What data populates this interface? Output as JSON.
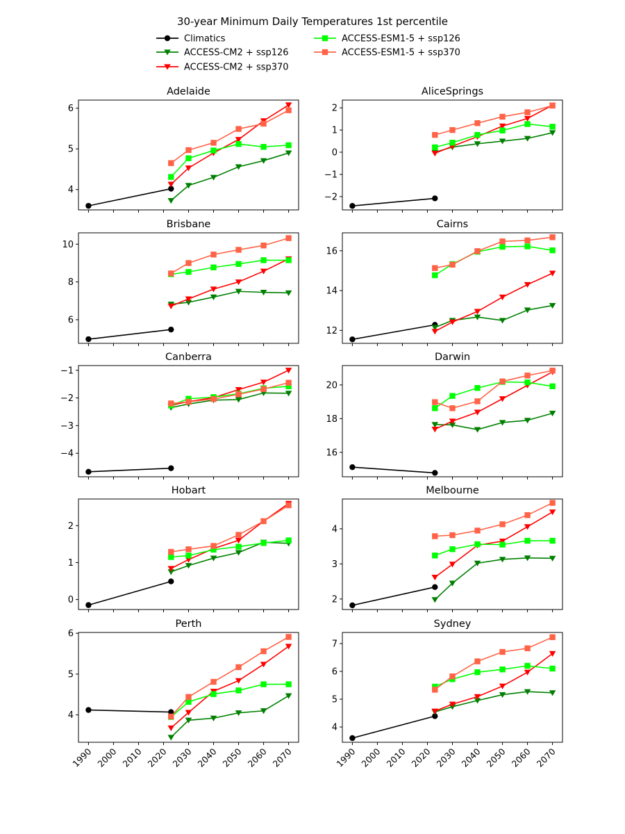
{
  "chart_data": {
    "type": "line",
    "title": "30-year Minimum Daily Temperatures 1st percentile",
    "legend_placement": "top-center",
    "xlabel": "",
    "ylabel": "",
    "grid": false,
    "x_ticks": [
      1990,
      2000,
      2010,
      2020,
      2030,
      2040,
      2050,
      2060,
      2070
    ],
    "xlim": [
      1986,
      2074
    ],
    "series_styles": [
      {
        "key": "climatics",
        "name": "Climatics",
        "color": "#000000",
        "marker": "circle"
      },
      {
        "key": "cm2_126",
        "name": "ACCESS-CM2 + ssp126",
        "color": "#008000",
        "marker": "triangle-down"
      },
      {
        "key": "cm2_370",
        "name": "ACCESS-CM2 + ssp370",
        "color": "#ff0000",
        "marker": "triangle-down"
      },
      {
        "key": "esm_126",
        "name": "ACCESS-ESM1-5 + ssp126",
        "color": "#00ff00",
        "marker": "square"
      },
      {
        "key": "esm_370",
        "name": "ACCESS-ESM1-5 + ssp370",
        "color": "#ff6347",
        "marker": "square"
      }
    ],
    "climatics_x": [
      1990,
      2023
    ],
    "projection_x": [
      2023,
      2030,
      2040,
      2050,
      2060,
      2070
    ],
    "panels": [
      {
        "title": "Adelaide",
        "ylim": [
          3.5,
          6.2
        ],
        "yticks": [
          4,
          5,
          6
        ],
        "series": {
          "climatics": [
            3.6,
            4.02
          ],
          "cm2_126": [
            3.73,
            4.1,
            4.3,
            4.56,
            4.71,
            4.9
          ],
          "cm2_370": [
            4.13,
            4.53,
            4.9,
            5.23,
            5.69,
            6.08
          ],
          "esm_126": [
            4.31,
            4.77,
            4.96,
            5.12,
            5.05,
            5.09
          ],
          "esm_370": [
            4.65,
            4.97,
            5.15,
            5.49,
            5.62,
            5.95
          ]
        }
      },
      {
        "title": "AliceSprings",
        "ylim": [
          -2.6,
          2.35
        ],
        "yticks": [
          -2,
          -1,
          0,
          1,
          2
        ],
        "series": {
          "climatics": [
            -2.42,
            -2.08
          ],
          "cm2_126": [
            0.0,
            0.23,
            0.38,
            0.5,
            0.62,
            0.88
          ],
          "cm2_370": [
            -0.05,
            0.27,
            0.7,
            1.18,
            1.52,
            2.12
          ],
          "esm_126": [
            0.22,
            0.43,
            0.78,
            0.98,
            1.27,
            1.15
          ],
          "esm_370": [
            0.78,
            1.0,
            1.31,
            1.6,
            1.8,
            2.1
          ]
        }
      },
      {
        "title": "Brisbane",
        "ylim": [
          4.75,
          10.6
        ],
        "yticks": [
          6,
          8,
          10
        ],
        "series": {
          "climatics": [
            4.97,
            5.48
          ],
          "cm2_126": [
            6.82,
            6.92,
            7.2,
            7.5,
            7.45,
            7.42
          ],
          "cm2_370": [
            6.72,
            7.1,
            7.62,
            8.0,
            8.57,
            9.22
          ],
          "esm_126": [
            8.41,
            8.53,
            8.77,
            8.95,
            9.15,
            9.15
          ],
          "esm_370": [
            8.45,
            9.0,
            9.45,
            9.7,
            9.93,
            10.32
          ]
        }
      },
      {
        "title": "Cairns",
        "ylim": [
          11.35,
          16.9
        ],
        "yticks": [
          12,
          14,
          16
        ],
        "series": {
          "climatics": [
            11.55,
            12.28
          ],
          "cm2_126": [
            12.15,
            12.5,
            12.67,
            12.5,
            13.02,
            13.25
          ],
          "cm2_370": [
            11.95,
            12.42,
            12.95,
            13.67,
            14.3,
            14.87
          ],
          "esm_126": [
            14.77,
            15.33,
            15.95,
            16.2,
            16.22,
            16.02
          ],
          "esm_370": [
            15.13,
            15.3,
            15.98,
            16.47,
            16.52,
            16.68
          ]
        }
      },
      {
        "title": "Canberra",
        "ylim": [
          -4.85,
          -0.83
        ],
        "yticks": [
          -4,
          -3,
          -2,
          -1
        ],
        "series": {
          "climatics": [
            -4.67,
            -4.54
          ],
          "cm2_126": [
            -2.35,
            -2.22,
            -2.08,
            -2.06,
            -1.82,
            -1.83
          ],
          "cm2_370": [
            -2.27,
            -2.13,
            -1.99,
            -1.7,
            -1.43,
            -1.0
          ],
          "esm_126": [
            -2.27,
            -2.03,
            -1.97,
            -1.85,
            -1.65,
            -1.58
          ],
          "esm_370": [
            -2.2,
            -2.14,
            -2.04,
            -1.87,
            -1.68,
            -1.45
          ]
        }
      },
      {
        "title": "Darwin",
        "ylim": [
          14.55,
          21.15
        ],
        "yticks": [
          16,
          18,
          20
        ],
        "series": {
          "climatics": [
            15.12,
            14.78
          ],
          "cm2_126": [
            17.65,
            17.63,
            17.35,
            17.77,
            17.9,
            18.32
          ],
          "cm2_370": [
            17.37,
            17.85,
            18.38,
            19.18,
            19.98,
            20.77
          ],
          "esm_126": [
            18.62,
            19.35,
            19.82,
            20.18,
            20.15,
            19.92
          ],
          "esm_370": [
            18.98,
            18.62,
            19.03,
            20.21,
            20.56,
            20.85
          ]
        }
      },
      {
        "title": "Hobart",
        "ylim": [
          -0.27,
          2.72
        ],
        "yticks": [
          0,
          1,
          2
        ],
        "series": {
          "climatics": [
            -0.15,
            0.49
          ],
          "cm2_126": [
            0.75,
            0.92,
            1.12,
            1.27,
            1.55,
            1.52
          ],
          "cm2_370": [
            0.84,
            1.08,
            1.38,
            1.6,
            2.12,
            2.6
          ],
          "esm_126": [
            1.15,
            1.19,
            1.35,
            1.43,
            1.53,
            1.6
          ],
          "esm_370": [
            1.29,
            1.36,
            1.45,
            1.75,
            2.12,
            2.55
          ]
        }
      },
      {
        "title": "Melbourne",
        "ylim": [
          1.7,
          4.85
        ],
        "yticks": [
          2,
          3,
          4
        ],
        "series": {
          "climatics": [
            1.82,
            2.34
          ],
          "cm2_126": [
            1.98,
            2.45,
            3.02,
            3.13,
            3.17,
            3.16
          ],
          "cm2_370": [
            2.62,
            2.99,
            3.53,
            3.65,
            4.06,
            4.48
          ],
          "esm_126": [
            3.24,
            3.42,
            3.56,
            3.55,
            3.66,
            3.66
          ],
          "esm_370": [
            3.79,
            3.82,
            3.95,
            4.13,
            4.39,
            4.74
          ]
        }
      },
      {
        "title": "Perth",
        "ylim": [
          3.33,
          6.02
        ],
        "yticks": [
          4,
          5,
          6
        ],
        "series": {
          "climatics": [
            4.12,
            4.07
          ],
          "cm2_126": [
            3.45,
            3.87,
            3.92,
            4.05,
            4.1,
            4.47
          ],
          "cm2_370": [
            3.68,
            4.06,
            4.58,
            4.84,
            5.24,
            5.68
          ],
          "esm_126": [
            3.95,
            4.32,
            4.51,
            4.6,
            4.75,
            4.75
          ],
          "esm_370": [
            3.96,
            4.44,
            4.81,
            5.17,
            5.56,
            5.91
          ]
        }
      },
      {
        "title": "Sydney",
        "ylim": [
          3.45,
          7.4
        ],
        "yticks": [
          4,
          5,
          6,
          7
        ],
        "series": {
          "climatics": [
            3.6,
            4.39
          ],
          "cm2_126": [
            4.54,
            4.73,
            4.95,
            5.16,
            5.27,
            5.23
          ],
          "cm2_370": [
            4.57,
            4.82,
            5.09,
            5.47,
            5.97,
            6.64
          ],
          "esm_126": [
            5.45,
            5.72,
            5.97,
            6.07,
            6.2,
            6.1
          ],
          "esm_370": [
            5.34,
            5.82,
            6.36,
            6.7,
            6.83,
            7.23
          ]
        }
      }
    ]
  }
}
